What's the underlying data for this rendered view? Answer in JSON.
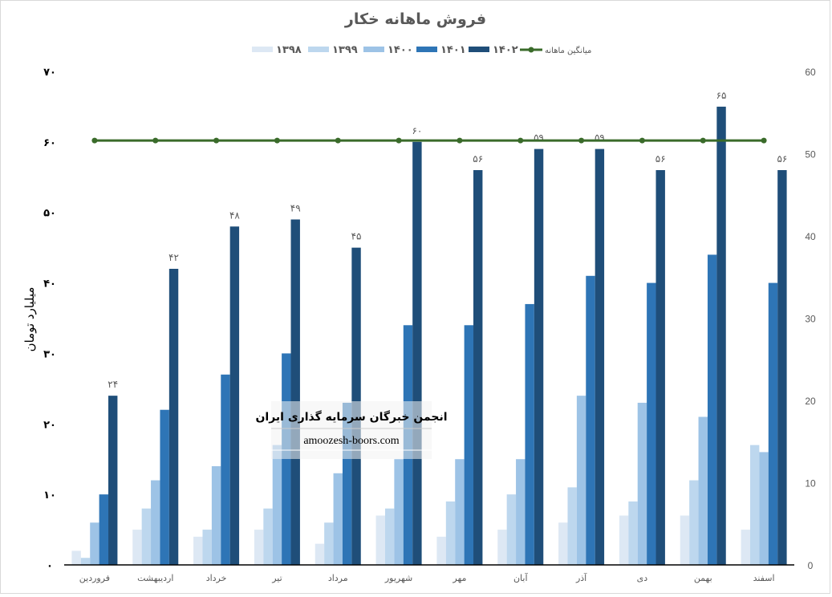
{
  "chart_data": {
    "type": "bar",
    "title": "فروش ماهانه خکار",
    "ylabel": "میلیارد تومان",
    "ylim": [
      0,
      70
    ],
    "y2lim": [
      0,
      60
    ],
    "yticks": [
      "۰",
      "۱۰",
      "۲۰",
      "۳۰",
      "۴۰",
      "۵۰",
      "۶۰",
      "۷۰"
    ],
    "y2ticks": [
      "0",
      "10",
      "20",
      "30",
      "40",
      "50",
      "60"
    ],
    "grid": false,
    "legend_placement": "top",
    "categories": [
      "فروردین",
      "اردیبهشت",
      "خرداد",
      "تیر",
      "مرداد",
      "شهریور",
      "مهر",
      "آبان",
      "آذر",
      "دی",
      "بهمن",
      "اسفند"
    ],
    "series": [
      {
        "name": "۱۳۹۸",
        "color": "#dde8f4",
        "values": [
          2,
          5,
          4,
          5,
          3,
          7,
          4,
          5,
          6,
          7,
          7,
          5
        ]
      },
      {
        "name": "۱۳۹۹",
        "color": "#bdd7ee",
        "values": [
          1,
          8,
          5,
          8,
          6,
          8,
          9,
          10,
          11,
          9,
          12,
          17
        ]
      },
      {
        "name": "۱۴۰۰",
        "color": "#9dc3e6",
        "values": [
          6,
          12,
          14,
          17,
          13,
          15,
          15,
          15,
          24,
          23,
          21,
          16
        ]
      },
      {
        "name": "۱۴۰۱",
        "color": "#2e75b6",
        "values": [
          10,
          22,
          27,
          30,
          23,
          34,
          34,
          37,
          41,
          40,
          44,
          40
        ]
      },
      {
        "name": "۱۴۰۲",
        "color": "#1f4e79",
        "values": [
          24,
          42,
          48,
          49,
          45,
          60,
          56,
          59,
          59,
          56,
          65,
          56
        ],
        "data_labels": [
          "۲۴",
          "۴۲",
          "۴۸",
          "۴۹",
          "۴۵",
          "۶۰",
          "۵۶",
          "۵۹",
          "۵۹",
          "۵۶",
          "۶۵",
          "۵۶"
        ]
      }
    ],
    "line_series": {
      "name": "میانگین ماهانه",
      "color": "#3a6b2a",
      "axis": "secondary",
      "values": [
        51.6,
        51.6,
        51.6,
        51.6,
        51.6,
        51.6,
        51.6,
        51.6,
        51.6,
        51.6,
        51.6,
        51.6
      ]
    }
  },
  "watermark": {
    "line1": "انجمن خبرگان سرمایه گذاری ایران",
    "line2": "amoozesh-boors.com"
  }
}
